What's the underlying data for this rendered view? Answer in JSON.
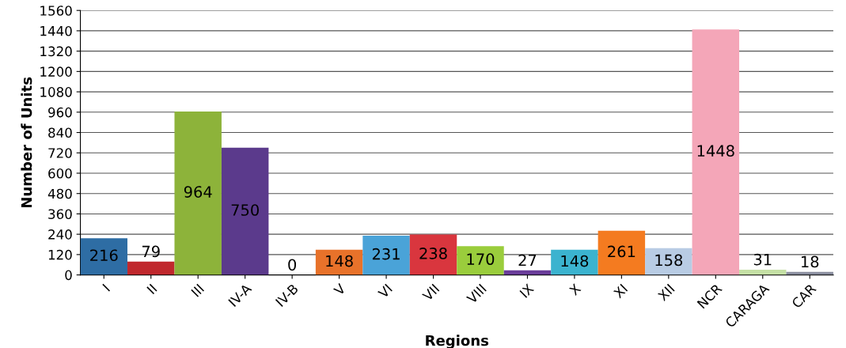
{
  "chart_data": {
    "type": "bar",
    "xlabel": "Regions",
    "ylabel": "Number of Units",
    "categories": [
      "I",
      "II",
      "III",
      "IV-A",
      "IV-B",
      "V",
      "VI",
      "VII",
      "VIII",
      "IX",
      "X",
      "XI",
      "XII",
      "NCR",
      "CARAGA",
      "CAR"
    ],
    "values": [
      216,
      79,
      964,
      750,
      0,
      148,
      231,
      238,
      170,
      27,
      148,
      261,
      158,
      1448,
      31,
      18
    ],
    "colors": [
      "#2e6da4",
      "#c0282d",
      "#8db33a",
      "#5b3a8c",
      "#808080",
      "#e8722a",
      "#4aa3d8",
      "#d9363e",
      "#9acd3c",
      "#6a3d9a",
      "#3bb3cf",
      "#f47b20",
      "#b8cce4",
      "#f4a6b8",
      "#c5e0a5",
      "#8b8fa0"
    ],
    "ylim": [
      0,
      1560
    ],
    "yticks": [
      0,
      120,
      240,
      360,
      480,
      600,
      720,
      840,
      960,
      1080,
      1200,
      1320,
      1440,
      1560
    ],
    "grid": "y",
    "data_labels": true
  }
}
